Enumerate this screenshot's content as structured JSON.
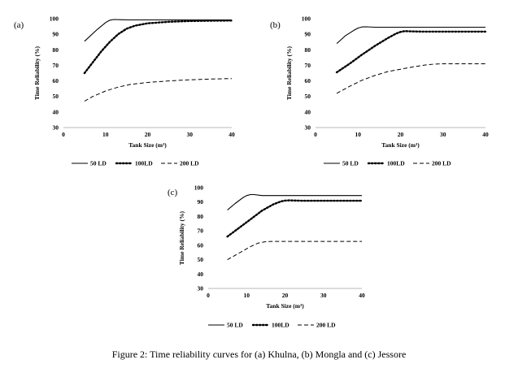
{
  "caption": "Figure 2: Time reliability curves for (a) Khulna, (b) Mongla and (c) Jessore",
  "chart_data": [
    {
      "type": "line",
      "panel_label": "(a)",
      "xlabel": "Tank Size (m³)",
      "ylabel": "Time Reliability (%)",
      "xlim": [
        0,
        40
      ],
      "ylim": [
        30,
        100
      ],
      "xticks": [
        0,
        10,
        20,
        30,
        40
      ],
      "yticks": [
        30,
        40,
        50,
        60,
        70,
        80,
        90,
        100
      ],
      "grid": false,
      "legend_position": "bottom",
      "series": [
        {
          "name": "50 LD",
          "style": "solid",
          "x": [
            5,
            8,
            10,
            11,
            12,
            14,
            16,
            20,
            25,
            30,
            35,
            40
          ],
          "y": [
            85.5,
            93,
            97.5,
            99,
            99.5,
            99.3,
            99.2,
            99.2,
            99.2,
            99.2,
            99.2,
            99.2
          ]
        },
        {
          "name": "100LD",
          "style": "dotted",
          "x": [
            5,
            7,
            9,
            11,
            13,
            15,
            17,
            20,
            25,
            30,
            35,
            40
          ],
          "y": [
            65,
            72,
            79,
            85,
            90,
            93.5,
            95.5,
            97,
            98,
            98.5,
            98.7,
            98.8
          ]
        },
        {
          "name": "200 LD",
          "style": "dashed",
          "x": [
            5,
            7,
            10,
            13,
            16,
            20,
            25,
            30,
            35,
            40
          ],
          "y": [
            47,
            50,
            53.5,
            56,
            57.8,
            59,
            60,
            60.7,
            61.2,
            61.5
          ]
        }
      ]
    },
    {
      "type": "line",
      "panel_label": "(b)",
      "xlabel": "Tank Size (m³)",
      "ylabel": "Time Reliability (%)",
      "xlim": [
        0,
        40
      ],
      "ylim": [
        30,
        100
      ],
      "xticks": [
        0,
        10,
        20,
        30,
        40
      ],
      "yticks": [
        30,
        40,
        50,
        60,
        70,
        80,
        90,
        100
      ],
      "grid": false,
      "legend_position": "bottom",
      "series": [
        {
          "name": "50 LD",
          "style": "solid",
          "x": [
            5,
            7,
            9,
            10,
            11,
            12,
            14,
            16,
            20,
            25,
            30,
            35,
            40
          ],
          "y": [
            84,
            89,
            92.5,
            94,
            94.7,
            94.8,
            94.5,
            94.5,
            94.5,
            94.5,
            94.5,
            94.5,
            94.5
          ]
        },
        {
          "name": "100LD",
          "style": "dotted",
          "x": [
            5,
            8,
            11,
            14,
            17,
            19,
            20,
            21,
            23,
            25,
            30,
            35,
            40
          ],
          "y": [
            65.5,
            71,
            77,
            82.5,
            87.5,
            90.5,
            91.5,
            92,
            91.8,
            91.7,
            91.7,
            91.7,
            91.7
          ]
        },
        {
          "name": "200 LD",
          "style": "dashed",
          "x": [
            5,
            8,
            11,
            14,
            17,
            20,
            23,
            26,
            28,
            30,
            35,
            40
          ],
          "y": [
            52,
            56.5,
            60.5,
            63.5,
            66,
            67.5,
            69,
            70.3,
            70.8,
            71,
            71,
            71
          ]
        }
      ]
    },
    {
      "type": "line",
      "panel_label": "(c)",
      "xlabel": "Tank Size (m³)",
      "ylabel": "Time Reliability (%)",
      "xlim": [
        0,
        40
      ],
      "ylim": [
        30,
        100
      ],
      "xticks": [
        0,
        10,
        20,
        30,
        40
      ],
      "yticks": [
        30,
        40,
        50,
        60,
        70,
        80,
        90,
        100
      ],
      "grid": false,
      "legend_position": "bottom",
      "series": [
        {
          "name": "50 LD",
          "style": "solid",
          "x": [
            5,
            7,
            9,
            10,
            11,
            12,
            14,
            16,
            20,
            25,
            30,
            35,
            40
          ],
          "y": [
            84.5,
            89,
            93,
            94.5,
            95.2,
            95.2,
            94.5,
            94.5,
            94.5,
            94.5,
            94.5,
            94.5,
            94.5
          ]
        },
        {
          "name": "100LD",
          "style": "dotted",
          "x": [
            5,
            8,
            11,
            14,
            17,
            19,
            20,
            21,
            23,
            25,
            30,
            35,
            40
          ],
          "y": [
            66,
            72,
            78,
            84,
            88.5,
            90.5,
            91,
            91.2,
            91,
            90.9,
            90.9,
            90.9,
            90.9
          ]
        },
        {
          "name": "200 LD",
          "style": "dashed",
          "x": [
            5,
            7,
            9,
            11,
            13,
            15,
            17,
            20,
            25,
            30,
            35,
            40
          ],
          "y": [
            50,
            53,
            56,
            59,
            61.5,
            62.5,
            62.7,
            62.7,
            62.7,
            62.7,
            62.7,
            62.7
          ]
        }
      ]
    }
  ]
}
